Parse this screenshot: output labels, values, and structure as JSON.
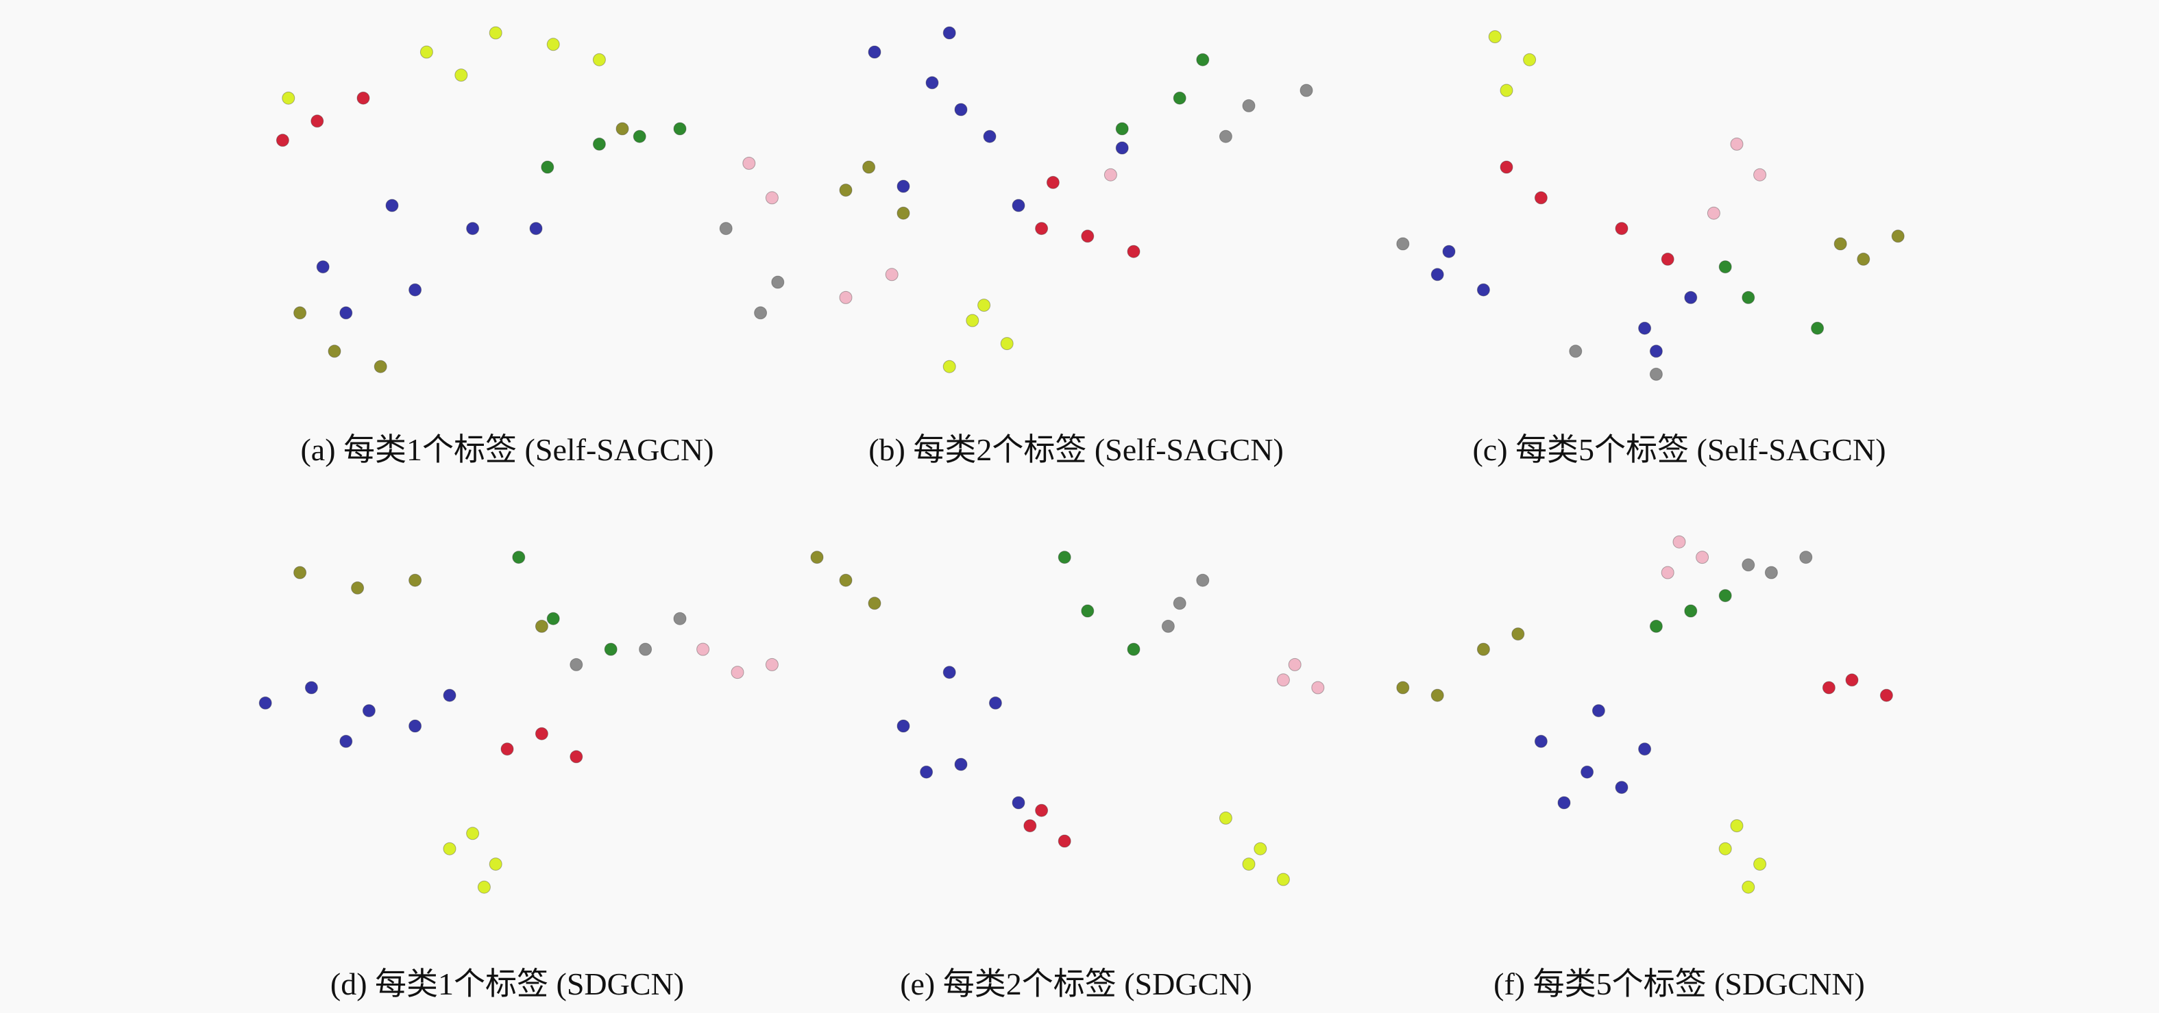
{
  "colors": {
    "blue": "#3535a8",
    "olive": "#8e8e2e",
    "green": "#2f8a2f",
    "gray": "#8c8c8c",
    "pink": "#f1b6c6",
    "red": "#d2243a",
    "yellow": "#d9ef2a"
  },
  "chart_data": [
    {
      "type": "scatter",
      "caption": "(a) 每类1个标签 (Self-SAGCN)",
      "series": [
        {
          "color": "blue",
          "x": [
            0.34,
            0.18,
            0.44,
            0.3,
            0.22,
            0.55
          ],
          "y": [
            0.72,
            0.66,
            0.56,
            0.5,
            0.78,
            0.56
          ]
        },
        {
          "color": "green",
          "x": [
            0.57,
            0.66,
            0.73,
            0.8
          ],
          "y": [
            0.4,
            0.34,
            0.32,
            0.3
          ]
        },
        {
          "color": "olive",
          "x": [
            0.2,
            0.14,
            0.7,
            0.28
          ],
          "y": [
            0.88,
            0.78,
            0.3,
            0.92
          ]
        },
        {
          "color": "gray",
          "x": [
            0.94,
            0.97,
            0.88
          ],
          "y": [
            0.78,
            0.7,
            0.56
          ]
        },
        {
          "color": "pink",
          "x": [
            0.96,
            0.92
          ],
          "y": [
            0.48,
            0.39
          ]
        },
        {
          "color": "red",
          "x": [
            0.11,
            0.25,
            0.17
          ],
          "y": [
            0.33,
            0.22,
            0.28
          ]
        },
        {
          "color": "yellow",
          "x": [
            0.36,
            0.48,
            0.58,
            0.66,
            0.42,
            0.12
          ],
          "y": [
            0.1,
            0.05,
            0.08,
            0.12,
            0.16,
            0.22
          ]
        }
      ]
    },
    {
      "type": "scatter",
      "caption": "(b) 每类2个标签 (Self-SAGCN)",
      "series": [
        {
          "color": "blue",
          "x": [
            0.15,
            0.25,
            0.35,
            0.2,
            0.4,
            0.3,
            0.58,
            0.28
          ],
          "y": [
            0.1,
            0.18,
            0.32,
            0.45,
            0.5,
            0.25,
            0.35,
            0.05
          ]
        },
        {
          "color": "olive",
          "x": [
            0.14,
            0.2,
            0.1
          ],
          "y": [
            0.4,
            0.52,
            0.46
          ]
        },
        {
          "color": "green",
          "x": [
            0.72,
            0.58,
            0.68
          ],
          "y": [
            0.12,
            0.3,
            0.22
          ]
        },
        {
          "color": "gray",
          "x": [
            0.8,
            0.9,
            0.76
          ],
          "y": [
            0.24,
            0.2,
            0.32
          ]
        },
        {
          "color": "pink",
          "x": [
            0.1,
            0.18,
            0.56
          ],
          "y": [
            0.74,
            0.68,
            0.42
          ]
        },
        {
          "color": "red",
          "x": [
            0.6,
            0.52,
            0.46,
            0.44
          ],
          "y": [
            0.62,
            0.58,
            0.44,
            0.56
          ]
        },
        {
          "color": "yellow",
          "x": [
            0.32,
            0.38,
            0.28,
            0.34
          ],
          "y": [
            0.8,
            0.86,
            0.92,
            0.76
          ]
        }
      ]
    },
    {
      "type": "scatter",
      "caption": "(c) 每类5个标签 (Self-SAGCN)",
      "series": [
        {
          "color": "blue",
          "x": [
            0.1,
            0.16,
            0.08,
            0.44,
            0.52,
            0.46
          ],
          "y": [
            0.62,
            0.72,
            0.68,
            0.82,
            0.74,
            0.88
          ]
        },
        {
          "color": "olive",
          "x": [
            0.78,
            0.88,
            0.82
          ],
          "y": [
            0.6,
            0.58,
            0.64
          ]
        },
        {
          "color": "green",
          "x": [
            0.62,
            0.74,
            0.58
          ],
          "y": [
            0.74,
            0.82,
            0.66
          ]
        },
        {
          "color": "gray",
          "x": [
            0.32,
            0.02,
            0.46
          ],
          "y": [
            0.88,
            0.6,
            0.94
          ]
        },
        {
          "color": "pink",
          "x": [
            0.6,
            0.64,
            0.56
          ],
          "y": [
            0.34,
            0.42,
            0.52
          ]
        },
        {
          "color": "red",
          "x": [
            0.2,
            0.26,
            0.4,
            0.48
          ],
          "y": [
            0.4,
            0.48,
            0.56,
            0.64
          ]
        },
        {
          "color": "yellow",
          "x": [
            0.18,
            0.24,
            0.2
          ],
          "y": [
            0.06,
            0.12,
            0.2
          ]
        }
      ]
    },
    {
      "type": "scatter",
      "caption": "(d) 每类1个标签 (SDGCN)",
      "series": [
        {
          "color": "blue",
          "x": [
            0.08,
            0.16,
            0.26,
            0.34,
            0.22,
            0.4
          ],
          "y": [
            0.44,
            0.4,
            0.46,
            0.5,
            0.54,
            0.42
          ]
        },
        {
          "color": "olive",
          "x": [
            0.14,
            0.24,
            0.34,
            0.56
          ],
          "y": [
            0.1,
            0.14,
            0.12,
            0.24
          ]
        },
        {
          "color": "green",
          "x": [
            0.52,
            0.58,
            0.68
          ],
          "y": [
            0.06,
            0.22,
            0.3
          ]
        },
        {
          "color": "gray",
          "x": [
            0.74,
            0.62,
            0.8
          ],
          "y": [
            0.3,
            0.34,
            0.22
          ]
        },
        {
          "color": "pink",
          "x": [
            0.9,
            0.84,
            0.96
          ],
          "y": [
            0.36,
            0.3,
            0.34
          ]
        },
        {
          "color": "red",
          "x": [
            0.56,
            0.62,
            0.5
          ],
          "y": [
            0.52,
            0.58,
            0.56
          ]
        },
        {
          "color": "yellow",
          "x": [
            0.44,
            0.48,
            0.4,
            0.46
          ],
          "y": [
            0.78,
            0.86,
            0.82,
            0.92
          ]
        }
      ]
    },
    {
      "type": "scatter",
      "caption": "(e) 每类2个标签 (SDGCN)",
      "series": [
        {
          "color": "blue",
          "x": [
            0.2,
            0.3,
            0.36,
            0.28,
            0.24,
            0.4
          ],
          "y": [
            0.5,
            0.6,
            0.44,
            0.36,
            0.62,
            0.7
          ]
        },
        {
          "color": "olive",
          "x": [
            0.05,
            0.15,
            0.1
          ],
          "y": [
            0.06,
            0.18,
            0.12
          ]
        },
        {
          "color": "green",
          "x": [
            0.48,
            0.52,
            0.6
          ],
          "y": [
            0.06,
            0.2,
            0.3
          ]
        },
        {
          "color": "gray",
          "x": [
            0.66,
            0.72,
            0.68
          ],
          "y": [
            0.24,
            0.12,
            0.18
          ]
        },
        {
          "color": "pink",
          "x": [
            0.86,
            0.92,
            0.88
          ],
          "y": [
            0.38,
            0.4,
            0.34
          ]
        },
        {
          "color": "red",
          "x": [
            0.44,
            0.48,
            0.42
          ],
          "y": [
            0.72,
            0.8,
            0.76
          ]
        },
        {
          "color": "yellow",
          "x": [
            0.76,
            0.82,
            0.86,
            0.8
          ],
          "y": [
            0.74,
            0.82,
            0.9,
            0.86
          ]
        }
      ]
    },
    {
      "type": "scatter",
      "caption": "(f) 每类5个标签 (SDGCNN)",
      "series": [
        {
          "color": "blue",
          "x": [
            0.26,
            0.34,
            0.4,
            0.3,
            0.44,
            0.36
          ],
          "y": [
            0.54,
            0.62,
            0.66,
            0.7,
            0.56,
            0.46
          ]
        },
        {
          "color": "olive",
          "x": [
            0.02,
            0.08,
            0.16,
            0.22
          ],
          "y": [
            0.4,
            0.42,
            0.3,
            0.26
          ]
        },
        {
          "color": "green",
          "x": [
            0.46,
            0.52,
            0.58
          ],
          "y": [
            0.24,
            0.2,
            0.16
          ]
        },
        {
          "color": "gray",
          "x": [
            0.62,
            0.72,
            0.66
          ],
          "y": [
            0.08,
            0.06,
            0.1
          ]
        },
        {
          "color": "pink",
          "x": [
            0.5,
            0.54,
            0.48
          ],
          "y": [
            0.02,
            0.06,
            0.1
          ]
        },
        {
          "color": "red",
          "x": [
            0.76,
            0.86,
            0.8
          ],
          "y": [
            0.4,
            0.42,
            0.38
          ]
        },
        {
          "color": "yellow",
          "x": [
            0.6,
            0.64,
            0.62,
            0.58
          ],
          "y": [
            0.76,
            0.86,
            0.92,
            0.82
          ]
        }
      ]
    }
  ]
}
